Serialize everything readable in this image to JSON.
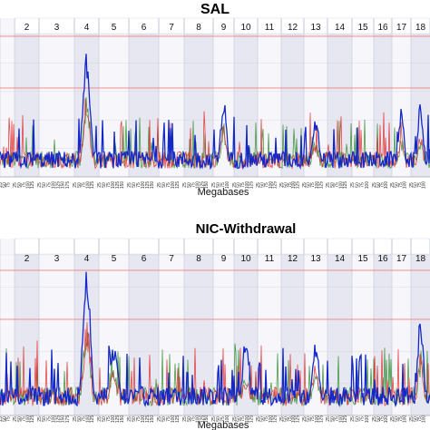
{
  "chart_data": [
    {
      "type": "line",
      "title": "SAL",
      "title_color": "#111111",
      "xlabel": "Megabases",
      "ylabel": "",
      "grid": true,
      "chromosome_labels": [
        "2",
        "3",
        "4",
        "5",
        "6",
        "7",
        "8",
        "9",
        "10",
        "11",
        "12",
        "13",
        "14",
        "15",
        "16",
        "17",
        "18"
      ],
      "series_colors": [
        "#2a8a2a",
        "#e02828",
        "#1428c8"
      ],
      "threshold_color": "#f08c8c",
      "peaks": [
        {
          "chrom": "4",
          "peak": 0.88
        },
        {
          "chrom": "9",
          "peak": 0.56
        },
        {
          "chrom": "18",
          "peak": 0.52
        },
        {
          "chrom": "17",
          "peak": 0.46
        },
        {
          "chrom": "13",
          "peak": 0.42
        }
      ]
    },
    {
      "type": "line",
      "title": "NIC-Withdrawal",
      "title_color": "#e02020",
      "xlabel": "Megabases",
      "ylabel": "",
      "grid": true,
      "chromosome_labels": [
        "2",
        "3",
        "4",
        "5",
        "6",
        "7",
        "8",
        "9",
        "10",
        "11",
        "12",
        "13",
        "14",
        "15",
        "16",
        "17",
        "18"
      ],
      "series_colors": [
        "#2a8a2a",
        "#e02828",
        "#1428c8"
      ],
      "threshold_color": "#f08c8c",
      "peaks": [
        {
          "chrom": "4",
          "peak": 0.97
        },
        {
          "chrom": "18",
          "peak": 0.62
        },
        {
          "chrom": "13",
          "peak": 0.48
        },
        {
          "chrom": "10",
          "peak": 0.45
        },
        {
          "chrom": "5",
          "peak": 0.44
        }
      ]
    }
  ]
}
